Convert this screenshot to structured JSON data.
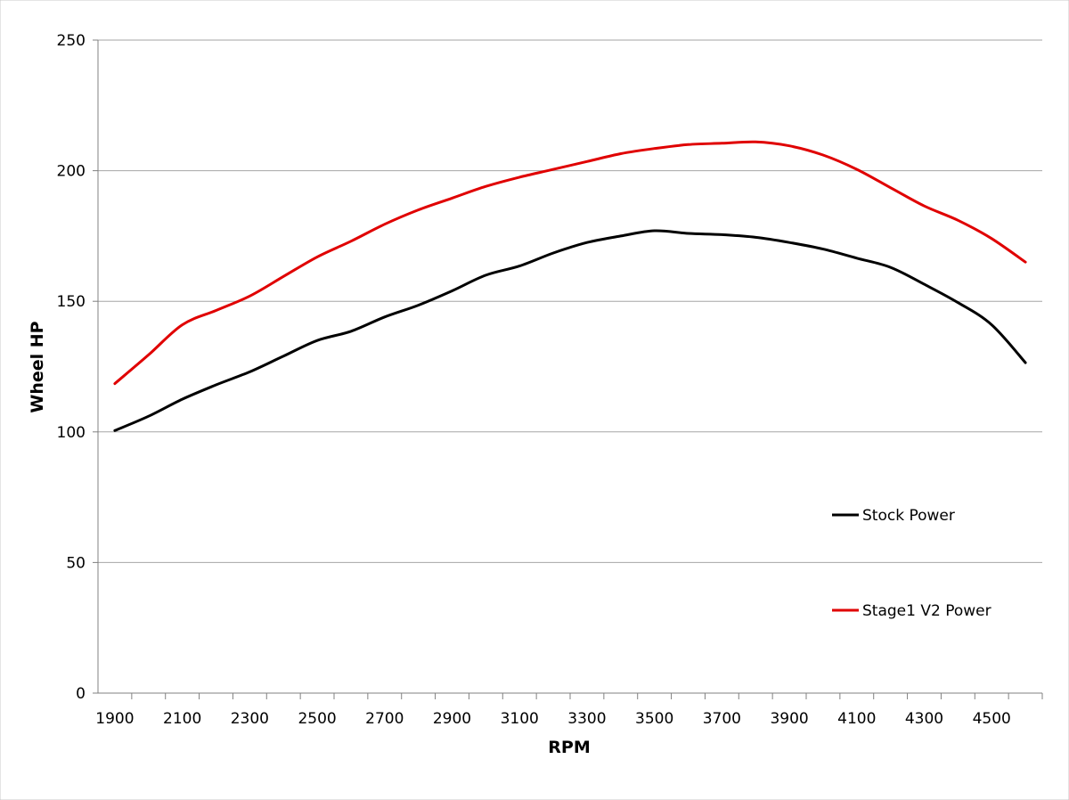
{
  "chart_data": {
    "type": "line",
    "xlabel": "RPM",
    "ylabel": "Wheel HP",
    "ylim": [
      0,
      250
    ],
    "yticks": [
      0,
      50,
      100,
      150,
      200,
      250
    ],
    "xlim": [
      1850,
      4650
    ],
    "xticks": [
      1900,
      2100,
      2300,
      2500,
      2700,
      2900,
      3100,
      3300,
      3500,
      3700,
      3900,
      4100,
      4300,
      4500
    ],
    "grid": true,
    "legend_position": "right",
    "series": [
      {
        "name": "Stock Power",
        "color": "#000000",
        "x": [
          1900,
          2000,
          2100,
          2200,
          2300,
          2400,
          2500,
          2600,
          2700,
          2800,
          2900,
          3000,
          3100,
          3200,
          3300,
          3400,
          3500,
          3600,
          3700,
          3800,
          3900,
          4000,
          4100,
          4200,
          4300,
          4400,
          4500,
          4600
        ],
        "values": [
          100.5,
          106,
          112.5,
          118,
          123,
          129,
          135,
          138.5,
          144,
          148.5,
          154,
          160,
          163.5,
          168.5,
          172.5,
          175,
          177,
          176,
          175.5,
          174.5,
          172.5,
          170,
          166.5,
          163,
          156.5,
          149.5,
          141,
          126.5
        ]
      },
      {
        "name": "Stage1 V2 Power",
        "color": "#e00000",
        "x": [
          1900,
          2000,
          2100,
          2200,
          2300,
          2400,
          2500,
          2600,
          2700,
          2800,
          2900,
          3000,
          3100,
          3200,
          3300,
          3400,
          3500,
          3600,
          3700,
          3800,
          3900,
          4000,
          4100,
          4200,
          4300,
          4400,
          4500,
          4600
        ],
        "values": [
          118.5,
          129.5,
          141,
          146.5,
          152,
          159.5,
          167,
          173,
          179.5,
          185,
          189.5,
          194,
          197.5,
          200.5,
          203.5,
          206.5,
          208.5,
          210,
          210.5,
          211,
          209.5,
          206,
          200.5,
          193.5,
          186.5,
          181,
          174,
          165
        ]
      }
    ]
  }
}
